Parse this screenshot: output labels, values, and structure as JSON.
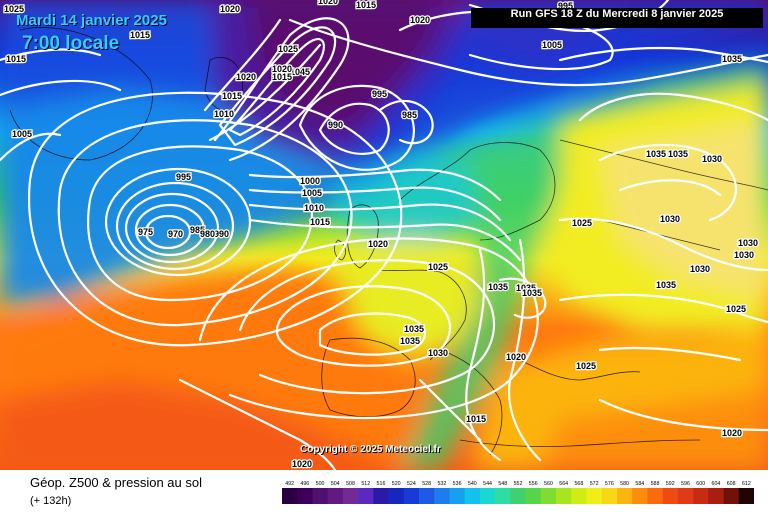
{
  "header": {
    "date": "Mardi 14 janvier 2025",
    "local_time": "7:00 locale",
    "run": "Run GFS 18 Z du Mercredi 8 janvier 2025",
    "copyright": "Copyright © 2025 Meteociel.fr"
  },
  "footer": {
    "title": "Géop. Z500 & pression au sol",
    "subtitle": "(+ 132h)"
  },
  "colors": {
    "low_purple": "#5a0a6e",
    "blue": "#1033d8",
    "cyan": "#14b7ec",
    "green": "#3ed23e",
    "yellow": "#f4ee1e",
    "orange": "#ff7a10",
    "isobar": "#ffffff"
  },
  "legend": {
    "values": [
      "492",
      "496",
      "500",
      "504",
      "508",
      "512",
      "516",
      "520",
      "524",
      "528",
      "532",
      "536",
      "540",
      "544",
      "548",
      "552",
      "556",
      "560",
      "564",
      "568",
      "572",
      "576",
      "580",
      "584",
      "588",
      "592",
      "596",
      "600",
      "604",
      "608",
      "612"
    ],
    "colors": [
      "#2a0040",
      "#3c0058",
      "#50106e",
      "#621a80",
      "#722a94",
      "#5a2ac0",
      "#2a1aa8",
      "#1428c0",
      "#1a3ad8",
      "#1e5ae6",
      "#1c7cf0",
      "#18a0f0",
      "#14c0ec",
      "#18d8d0",
      "#30dca0",
      "#40d070",
      "#58d448",
      "#80dc30",
      "#a8e420",
      "#d0ec18",
      "#f0ee18",
      "#f8d814",
      "#fcb410",
      "#fd8e0c",
      "#fb6a0e",
      "#f04a14",
      "#e03a16",
      "#c82a14",
      "#a81e10",
      "#701208",
      "#200404"
    ]
  },
  "pressure_labels": [
    {
      "name": "label-1025-top-left",
      "text": "1025"
    },
    {
      "name": "label-1020-top",
      "text": "1020"
    },
    {
      "name": "label-1020-top-2",
      "text": "1020"
    },
    {
      "name": "label-1015-top",
      "text": "1015"
    },
    {
      "name": "label-1015-left",
      "text": "1015"
    },
    {
      "name": "label-1015-left-2",
      "text": "1015"
    },
    {
      "name": "label-1005-left",
      "text": "1005"
    },
    {
      "name": "label-1025-iceland",
      "text": "1025"
    },
    {
      "name": "label-1020-iceland",
      "text": "1020"
    },
    {
      "name": "label-1015-iceland",
      "text": "1015"
    },
    {
      "name": "label-1010-iceland",
      "text": "1010"
    },
    {
      "name": "label-1045-greenland",
      "text": "1045"
    },
    {
      "name": "label-1020-gr",
      "text": "1020"
    },
    {
      "name": "label-1015-gr",
      "text": "1015"
    },
    {
      "name": "label-995-norway",
      "text": "995"
    },
    {
      "name": "label-990-norway",
      "text": "990"
    },
    {
      "name": "label-985-norway",
      "text": "985"
    },
    {
      "name": "label-1020-arctic",
      "text": "1020"
    },
    {
      "name": "label-1005-arctic",
      "text": "1005"
    },
    {
      "name": "label-995-arctic",
      "text": "995"
    },
    {
      "name": "label-1035-ne",
      "text": "1035"
    },
    {
      "name": "label-995-atl",
      "text": "995"
    },
    {
      "name": "label-975-low",
      "text": "975"
    },
    {
      "name": "label-970-low",
      "text": "970"
    },
    {
      "name": "label-985-low",
      "text": "985"
    },
    {
      "name": "label-990-low",
      "text": "990"
    },
    {
      "name": "label-980-low",
      "text": "980"
    },
    {
      "name": "label-1000-sea",
      "text": "1000"
    },
    {
      "name": "label-1005-sea",
      "text": "1005"
    },
    {
      "name": "label-1010-sea",
      "text": "1010"
    },
    {
      "name": "label-1015-sea",
      "text": "1015"
    },
    {
      "name": "label-1020-uk",
      "text": "1020"
    },
    {
      "name": "label-1025-france",
      "text": "1025"
    },
    {
      "name": "label-1035-alps",
      "text": "1035"
    },
    {
      "name": "label-1035-alps-2",
      "text": "1035"
    },
    {
      "name": "label-1035-alps-3",
      "text": "1035"
    },
    {
      "name": "label-1035-iberia",
      "text": "1035"
    },
    {
      "name": "label-1035-iberia-2",
      "text": "1035"
    },
    {
      "name": "label-1030-iberia",
      "text": "1030"
    },
    {
      "name": "label-1025-europe",
      "text": "1025"
    },
    {
      "name": "label-1035-russia",
      "text": "1035"
    },
    {
      "name": "label-1035-russia-2",
      "text": "1035"
    },
    {
      "name": "label-1030-russia",
      "text": "1030"
    },
    {
      "name": "label-1030-russia-2",
      "text": "1030"
    },
    {
      "name": "label-1030-east",
      "text": "1030"
    },
    {
      "name": "label-1030-east-2",
      "text": "1030"
    },
    {
      "name": "label-1030-east-3",
      "text": "1030"
    },
    {
      "name": "label-1035-east",
      "text": "1035"
    },
    {
      "name": "label-1025-east",
      "text": "1025"
    },
    {
      "name": "label-1025-balkans",
      "text": "1025"
    },
    {
      "name": "label-1020-med",
      "text": "1020"
    },
    {
      "name": "label-1015-med",
      "text": "1015"
    },
    {
      "name": "label-1020-se",
      "text": "1020"
    },
    {
      "name": "label-1020-sw",
      "text": "1020"
    }
  ]
}
